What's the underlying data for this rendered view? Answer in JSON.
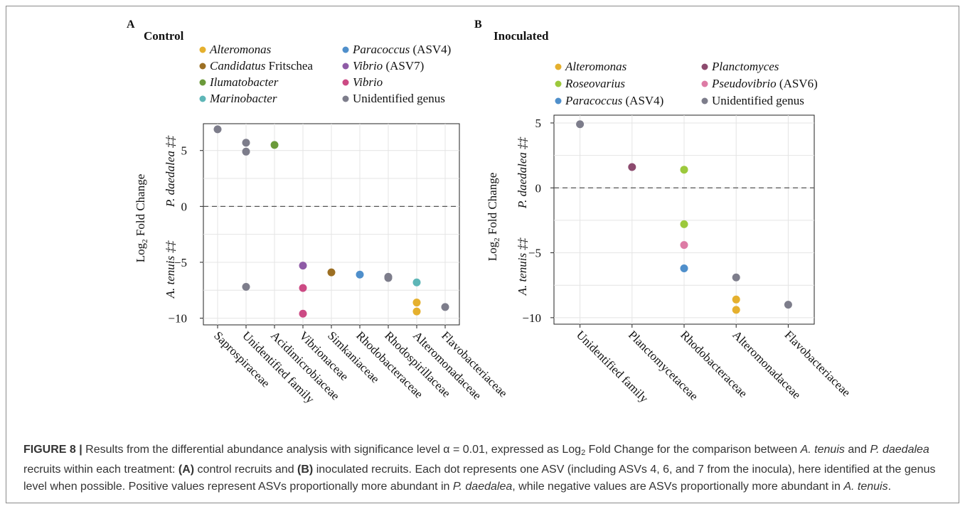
{
  "chart_data": [
    {
      "panel_label": "A",
      "title": "Control",
      "type": "scatter",
      "ylabel": "Log2 Fold Change",
      "ylabel_top": "P. daedalea ‡‡",
      "ylabel_bottom": "A. tenuis ‡‡",
      "ylim": [
        -10.6,
        7.4
      ],
      "yticks": [
        5,
        0,
        -5,
        -10
      ],
      "ytick_labels": [
        "5",
        "0",
        "−5",
        "−10"
      ],
      "grid": true,
      "legend_position": "top",
      "categories": [
        "Saprospiraceae",
        "Unidentified family",
        "Acidimicrobiaceae",
        "Vibrionaceae",
        "Simkaniaceae",
        "Rhodobacteraceae",
        "Rhodospirillaceae",
        "Alteromonadaceae",
        "Flavobacteriaceae"
      ],
      "legend": [
        {
          "label": "Alteromonas",
          "italic": true,
          "color": "#E5B02E"
        },
        {
          "label": "Candidatus Fritschea",
          "italic": true,
          "color": "#9C6F23"
        },
        {
          "label": "Ilumatobacter",
          "italic": true,
          "color": "#6B9A3A"
        },
        {
          "label": "Marinobacter",
          "italic": true,
          "color": "#5EB6B7"
        },
        {
          "label": "Paracoccus (ASV4)",
          "italic": false,
          "color": "#4F8FCB"
        },
        {
          "label": "Vibrio (ASV7)",
          "italic": false,
          "color": "#8E5BA6"
        },
        {
          "label": "Vibrio",
          "italic": true,
          "color": "#CC4A84"
        },
        {
          "label": "Unidentified genus",
          "italic": false,
          "color": "#7D7D8B"
        }
      ],
      "points": [
        {
          "category": "Saprospiraceae",
          "genus": "Unidentified genus",
          "y": 6.9
        },
        {
          "category": "Unidentified family",
          "genus": "Unidentified genus",
          "y": 5.7
        },
        {
          "category": "Unidentified family",
          "genus": "Unidentified genus",
          "y": 4.9
        },
        {
          "category": "Unidentified family",
          "genus": "Unidentified genus",
          "y": -7.2
        },
        {
          "category": "Acidimicrobiaceae",
          "genus": "Ilumatobacter",
          "y": 5.5
        },
        {
          "category": "Vibrionaceae",
          "genus": "Vibrio (ASV7)",
          "y": -5.3
        },
        {
          "category": "Vibrionaceae",
          "genus": "Vibrio",
          "y": -7.3
        },
        {
          "category": "Vibrionaceae",
          "genus": "Vibrio",
          "y": -9.6
        },
        {
          "category": "Simkaniaceae",
          "genus": "Candidatus Fritschea",
          "y": -5.9
        },
        {
          "category": "Rhodobacteraceae",
          "genus": "Paracoccus (ASV4)",
          "y": -6.1
        },
        {
          "category": "Rhodospirillaceae",
          "genus": "Unidentified genus",
          "y": -6.3
        },
        {
          "category": "Rhodospirillaceae",
          "genus": "Unidentified genus",
          "y": -6.4
        },
        {
          "category": "Alteromonadaceae",
          "genus": "Marinobacter",
          "y": -6.8
        },
        {
          "category": "Alteromonadaceae",
          "genus": "Alteromonas",
          "y": -8.6
        },
        {
          "category": "Alteromonadaceae",
          "genus": "Alteromonas",
          "y": -9.4
        },
        {
          "category": "Flavobacteriaceae",
          "genus": "Unidentified genus",
          "y": -9.0
        }
      ]
    },
    {
      "panel_label": "B",
      "title": "Inoculated",
      "type": "scatter",
      "ylabel": "Log2 Fold Change",
      "ylabel_top": "P. daedalea ‡‡",
      "ylabel_bottom": "A. tenuis ‡‡",
      "ylim": [
        -10.5,
        5.6
      ],
      "yticks": [
        5,
        0,
        -5,
        -10
      ],
      "ytick_labels": [
        "5",
        "0",
        "−5",
        "−10"
      ],
      "grid": true,
      "legend_position": "top",
      "categories": [
        "Unidentified family",
        "Planctomycetaceae",
        "Rhodobacteraceae",
        "Alteromonadaceae",
        "Flavobacteriaceae"
      ],
      "legend": [
        {
          "label": "Alteromonas",
          "italic": true,
          "color": "#E5B02E"
        },
        {
          "label": "Roseovarius",
          "italic": true,
          "color": "#9CC93C"
        },
        {
          "label": "Paracoccus (ASV4)",
          "italic": false,
          "color": "#4F8FCB"
        },
        {
          "label": "Planctomyces",
          "italic": true,
          "color": "#8C4A6E"
        },
        {
          "label": "Pseudovibrio (ASV6)",
          "italic": false,
          "color": "#DD7BA5"
        },
        {
          "label": "Unidentified genus",
          "italic": false,
          "color": "#7D7D8B"
        }
      ],
      "points": [
        {
          "category": "Unidentified family",
          "genus": "Unidentified genus",
          "y": 4.9
        },
        {
          "category": "Planctomycetaceae",
          "genus": "Planctomyces",
          "y": 1.6
        },
        {
          "category": "Rhodobacteraceae",
          "genus": "Roseovarius",
          "y": 1.4
        },
        {
          "category": "Rhodobacteraceae",
          "genus": "Roseovarius",
          "y": -2.8
        },
        {
          "category": "Rhodobacteraceae",
          "genus": "Pseudovibrio (ASV6)",
          "y": -4.4
        },
        {
          "category": "Rhodobacteraceae",
          "genus": "Paracoccus (ASV4)",
          "y": -6.2
        },
        {
          "category": "Alteromonadaceae",
          "genus": "Unidentified genus",
          "y": -6.9
        },
        {
          "category": "Alteromonadaceae",
          "genus": "Alteromonas",
          "y": -8.6
        },
        {
          "category": "Alteromonadaceae",
          "genus": "Alteromonas",
          "y": -9.4
        },
        {
          "category": "Flavobacteriaceae",
          "genus": "Unidentified genus",
          "y": -9.0
        }
      ]
    }
  ],
  "caption": {
    "figure_label": "FIGURE 8 |",
    "text_1": " Results from the differential abundance analysis with significance level α = 0.01, expressed as Log",
    "sub_2": "2",
    "text_2": " Fold Change for the comparison between ",
    "species_a": "A. tenuis",
    "text_3": " and ",
    "species_b": "P. daedalea",
    "text_4": " recruits within each treatment: ",
    "label_a": "(A)",
    "text_5": " control recruits and ",
    "label_b": "(B)",
    "text_6": " inoculated recruits. Each dot represents one ASV (including ASVs 4, 6, and 7 from the inocula), here identified at the genus level when possible. Positive values represent ASVs proportionally more abundant in ",
    "species_b2": "P. daedalea",
    "text_7": ", while negative values are ASVs proportionally more abundant in ",
    "species_a2": "A. tenuis",
    "text_8": "."
  }
}
